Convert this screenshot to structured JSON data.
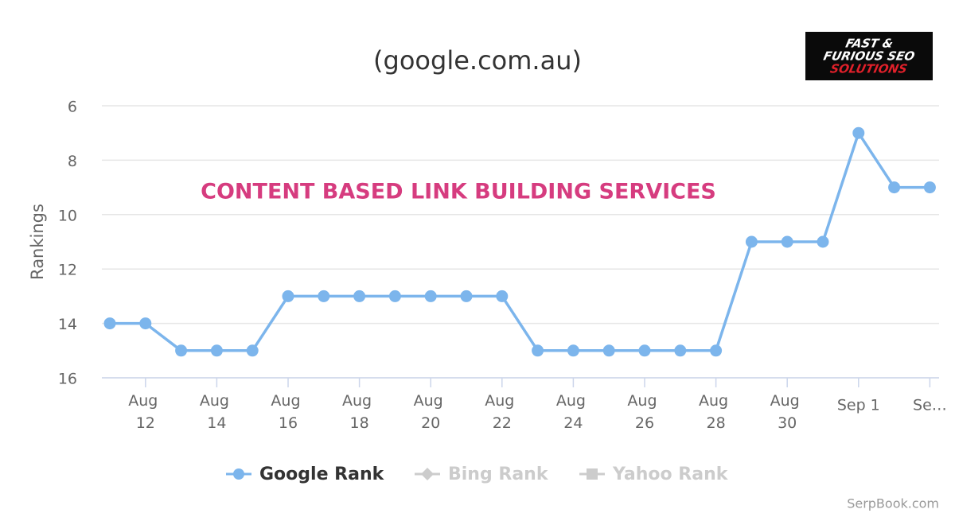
{
  "chart_data": {
    "type": "line",
    "title": "(google.com.au)",
    "y_label": "Rankings",
    "annotation": "CONTENT BASED LINK BUILDING SERVICES",
    "logo": [
      "FAST &",
      "FURIOUS SEO",
      "SOLUTIONS"
    ],
    "credit": "SerpBook.com",
    "categories": [
      null,
      "Aug 12",
      null,
      "Aug 14",
      null,
      "Aug 16",
      null,
      "Aug 18",
      null,
      "Aug 20",
      null,
      "Aug 22",
      null,
      "Aug 24",
      null,
      "Aug 26",
      null,
      "Aug 28",
      null,
      "Aug 30",
      null,
      "Sep 1",
      null,
      "Se…"
    ],
    "series": [
      {
        "name": "Google Rank",
        "color": "#7cb5ec",
        "marker": "circle",
        "visible": true,
        "values": [
          14,
          14,
          15,
          15,
          15,
          13,
          13,
          13,
          13,
          13,
          13,
          13,
          15,
          15,
          15,
          15,
          15,
          15,
          11,
          11,
          11,
          7,
          9,
          9
        ]
      },
      {
        "name": "Bing Rank",
        "color": "#cccccc",
        "marker": "diamond",
        "visible": false,
        "values": [
          null,
          null,
          null,
          null,
          null,
          null,
          null,
          null,
          null,
          null,
          null,
          null,
          null,
          null,
          null,
          null,
          null,
          null,
          null,
          null,
          null,
          null,
          null,
          null
        ]
      },
      {
        "name": "Yahoo Rank",
        "color": "#cccccc",
        "marker": "square",
        "visible": false,
        "values": [
          null,
          null,
          null,
          null,
          null,
          null,
          null,
          null,
          null,
          null,
          null,
          null,
          null,
          null,
          null,
          null,
          null,
          null,
          null,
          null,
          null,
          null,
          null,
          null
        ]
      }
    ],
    "ylim": [
      6,
      16
    ],
    "yticks": [
      6,
      8,
      10,
      12,
      14,
      16
    ],
    "y_reversed": true,
    "grid": true
  }
}
